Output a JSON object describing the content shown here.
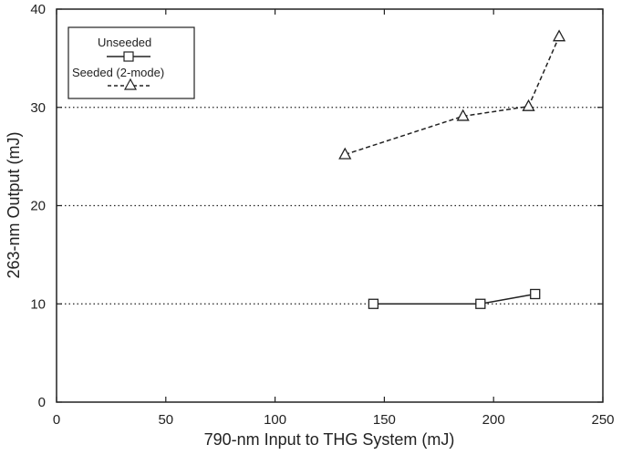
{
  "chart_data": {
    "type": "line",
    "title": "",
    "xlabel": "790-nm Input to THG System (mJ)",
    "ylabel": "263-nm Output (mJ)",
    "xlim": [
      0,
      250
    ],
    "ylim": [
      0,
      40
    ],
    "xticks": [
      0,
      50,
      100,
      150,
      200,
      250
    ],
    "yticks": [
      0,
      10,
      20,
      30,
      40
    ],
    "grid": "horizontal dotted",
    "legend_position": "top-left",
    "series": [
      {
        "name": "Unseeded",
        "marker": "square",
        "line_style": "solid",
        "x": [
          145,
          194,
          219
        ],
        "y": [
          10,
          10,
          11
        ]
      },
      {
        "name": "Seeded (2-mode)",
        "marker": "triangle",
        "line_style": "dashed",
        "x": [
          132,
          186,
          216,
          230
        ],
        "y": [
          25.2,
          29.1,
          30.1,
          37.2
        ]
      }
    ],
    "color": "#222222"
  }
}
